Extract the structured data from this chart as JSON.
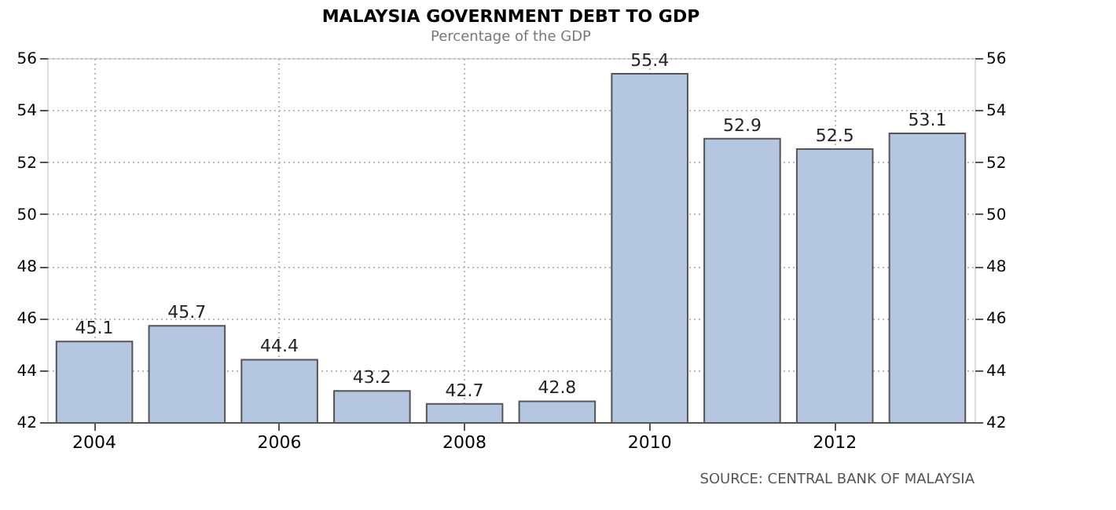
{
  "chart_data": {
    "type": "bar",
    "title": "MALAYSIA GOVERNMENT DEBT TO GDP",
    "subtitle": "Percentage of the GDP",
    "categories": [
      "2004",
      null,
      "2006",
      null,
      "2008",
      null,
      "2010",
      null,
      "2012",
      null
    ],
    "values": [
      45.1,
      45.7,
      44.4,
      43.2,
      42.7,
      42.8,
      55.4,
      52.9,
      52.5,
      53.1
    ],
    "color": "#b4c6e0",
    "data_labels": true,
    "ylim": [
      42,
      56
    ],
    "yticks": [
      42,
      44,
      46,
      48,
      50,
      52,
      54,
      56
    ],
    "y2lim": [
      42,
      56
    ],
    "y2ticks": [
      42,
      44,
      46,
      48,
      50,
      52,
      54,
      56
    ],
    "grid": true,
    "annotations": [
      "SOURCE: CENTRAL BANK OF MALAYSIA"
    ]
  }
}
